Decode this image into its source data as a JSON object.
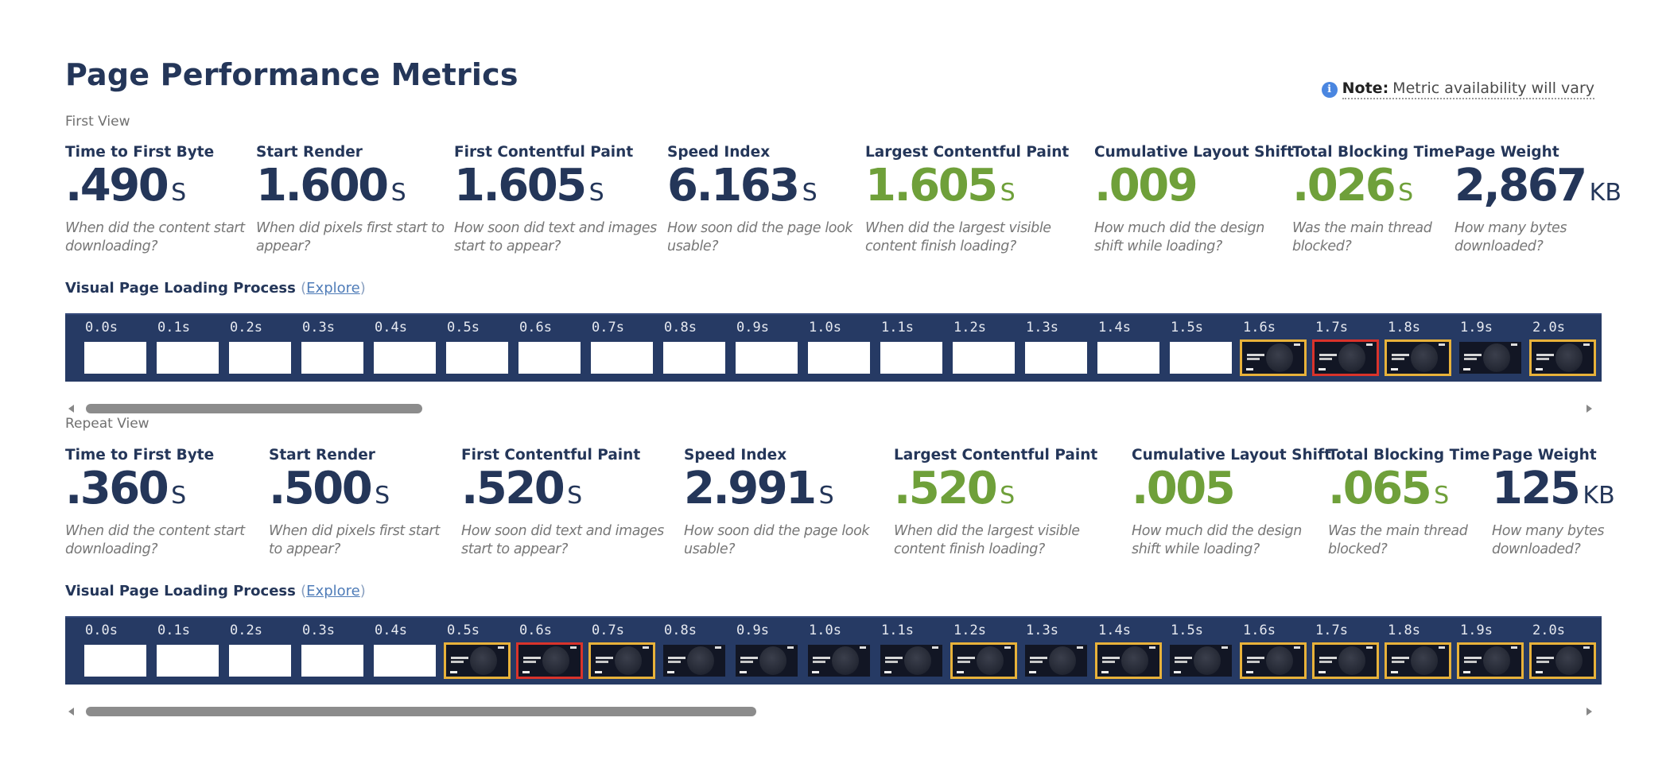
{
  "page": {
    "title": "Page Performance Metrics",
    "note": {
      "icon": "info-icon",
      "label": "Note:",
      "text": "Metric availability will vary"
    }
  },
  "colors": {
    "navy": "#243659",
    "green": "#6fa03a",
    "filmstrip_bg": "#263a64",
    "highlight_yellow": "#e8b23a",
    "highlight_red": "#d9332b"
  },
  "first_view": {
    "label": "First View",
    "metrics": [
      {
        "label": "Time to First Byte",
        "value": ".490",
        "unit": "S",
        "desc": "When did the content start downloading?",
        "color": "navy"
      },
      {
        "label": "Start Render",
        "value": "1.600",
        "unit": "S",
        "desc": "When did pixels first start to appear?",
        "color": "navy"
      },
      {
        "label": "First Contentful Paint",
        "value": "1.605",
        "unit": "S",
        "desc": "How soon did text and images start to appear?",
        "color": "navy"
      },
      {
        "label": "Speed Index",
        "value": "6.163",
        "unit": "S",
        "desc": "How soon did the page look usable?",
        "color": "navy"
      },
      {
        "label": "Largest Contentful Paint",
        "value": "1.605",
        "unit": "S",
        "desc": "When did the largest visible content finish loading?",
        "color": "green"
      },
      {
        "label": "Cumulative Layout Shift",
        "value": ".009",
        "unit": "",
        "desc": "How much did the design shift while loading?",
        "color": "green"
      },
      {
        "label": "Total Blocking Time",
        "value": ".026",
        "unit": "S",
        "desc": "Was the main thread blocked?",
        "color": "green"
      },
      {
        "label": "Page Weight",
        "value": "2,867",
        "unit": "KB",
        "desc": "How many bytes downloaded?",
        "color": "navy"
      }
    ],
    "visual": {
      "title": "Visual Page Loading Process",
      "explore": "Explore",
      "frames": [
        {
          "time": "0.0s",
          "state": "blank",
          "border": "none"
        },
        {
          "time": "0.1s",
          "state": "blank",
          "border": "none"
        },
        {
          "time": "0.2s",
          "state": "blank",
          "border": "none"
        },
        {
          "time": "0.3s",
          "state": "blank",
          "border": "none"
        },
        {
          "time": "0.4s",
          "state": "blank",
          "border": "none"
        },
        {
          "time": "0.5s",
          "state": "blank",
          "border": "none"
        },
        {
          "time": "0.6s",
          "state": "blank",
          "border": "none"
        },
        {
          "time": "0.7s",
          "state": "blank",
          "border": "none"
        },
        {
          "time": "0.8s",
          "state": "blank",
          "border": "none"
        },
        {
          "time": "0.9s",
          "state": "blank",
          "border": "none"
        },
        {
          "time": "1.0s",
          "state": "blank",
          "border": "none"
        },
        {
          "time": "1.1s",
          "state": "blank",
          "border": "none"
        },
        {
          "time": "1.2s",
          "state": "blank",
          "border": "none"
        },
        {
          "time": "1.3s",
          "state": "blank",
          "border": "none"
        },
        {
          "time": "1.4s",
          "state": "blank",
          "border": "none"
        },
        {
          "time": "1.5s",
          "state": "blank",
          "border": "none"
        },
        {
          "time": "1.6s",
          "state": "shot",
          "border": "yellow"
        },
        {
          "time": "1.7s",
          "state": "shot",
          "border": "red"
        },
        {
          "time": "1.8s",
          "state": "shot",
          "border": "yellow"
        },
        {
          "time": "1.9s",
          "state": "shot",
          "border": "none"
        },
        {
          "time": "2.0s",
          "state": "shot",
          "border": "yellow"
        }
      ]
    }
  },
  "repeat_view": {
    "label": "Repeat View",
    "metrics": [
      {
        "label": "Time to First Byte",
        "value": ".360",
        "unit": "S",
        "desc": "When did the content start downloading?",
        "color": "navy"
      },
      {
        "label": "Start Render",
        "value": ".500",
        "unit": "S",
        "desc": "When did pixels first start to appear?",
        "color": "navy"
      },
      {
        "label": "First Contentful Paint",
        "value": ".520",
        "unit": "S",
        "desc": "How soon did text and images start to appear?",
        "color": "navy"
      },
      {
        "label": "Speed Index",
        "value": "2.991",
        "unit": "S",
        "desc": "How soon did the page look usable?",
        "color": "navy"
      },
      {
        "label": "Largest Contentful Paint",
        "value": ".520",
        "unit": "S",
        "desc": "When did the largest visible content finish loading?",
        "color": "green"
      },
      {
        "label": "Cumulative Layout Shift",
        "value": ".005",
        "unit": "",
        "desc": "How much did the design shift while loading?",
        "color": "green"
      },
      {
        "label": "Total Blocking Time",
        "value": ".065",
        "unit": "S",
        "desc": "Was the main thread blocked?",
        "color": "green"
      },
      {
        "label": "Page Weight",
        "value": "125",
        "unit": "KB",
        "desc": "How many bytes downloaded?",
        "color": "navy"
      }
    ],
    "visual": {
      "title": "Visual Page Loading Process",
      "explore": "Explore",
      "frames": [
        {
          "time": "0.0s",
          "state": "blank",
          "border": "none"
        },
        {
          "time": "0.1s",
          "state": "blank",
          "border": "none"
        },
        {
          "time": "0.2s",
          "state": "blank",
          "border": "none"
        },
        {
          "time": "0.3s",
          "state": "blank",
          "border": "none"
        },
        {
          "time": "0.4s",
          "state": "blank",
          "border": "none"
        },
        {
          "time": "0.5s",
          "state": "shot",
          "border": "yellow"
        },
        {
          "time": "0.6s",
          "state": "shot",
          "border": "red"
        },
        {
          "time": "0.7s",
          "state": "shot",
          "border": "yellow"
        },
        {
          "time": "0.8s",
          "state": "shot",
          "border": "none"
        },
        {
          "time": "0.9s",
          "state": "shot",
          "border": "none"
        },
        {
          "time": "1.0s",
          "state": "shot",
          "border": "none"
        },
        {
          "time": "1.1s",
          "state": "shot",
          "border": "none"
        },
        {
          "time": "1.2s",
          "state": "shot",
          "border": "yellow"
        },
        {
          "time": "1.3s",
          "state": "shot",
          "border": "none"
        },
        {
          "time": "1.4s",
          "state": "shot",
          "border": "yellow"
        },
        {
          "time": "1.5s",
          "state": "shot",
          "border": "none"
        },
        {
          "time": "1.6s",
          "state": "shot",
          "border": "yellow"
        },
        {
          "time": "1.7s",
          "state": "shot",
          "border": "yellow"
        },
        {
          "time": "1.8s",
          "state": "shot",
          "border": "yellow"
        },
        {
          "time": "1.9s",
          "state": "shot",
          "border": "yellow"
        },
        {
          "time": "2.0s",
          "state": "shot",
          "border": "yellow"
        }
      ]
    }
  }
}
